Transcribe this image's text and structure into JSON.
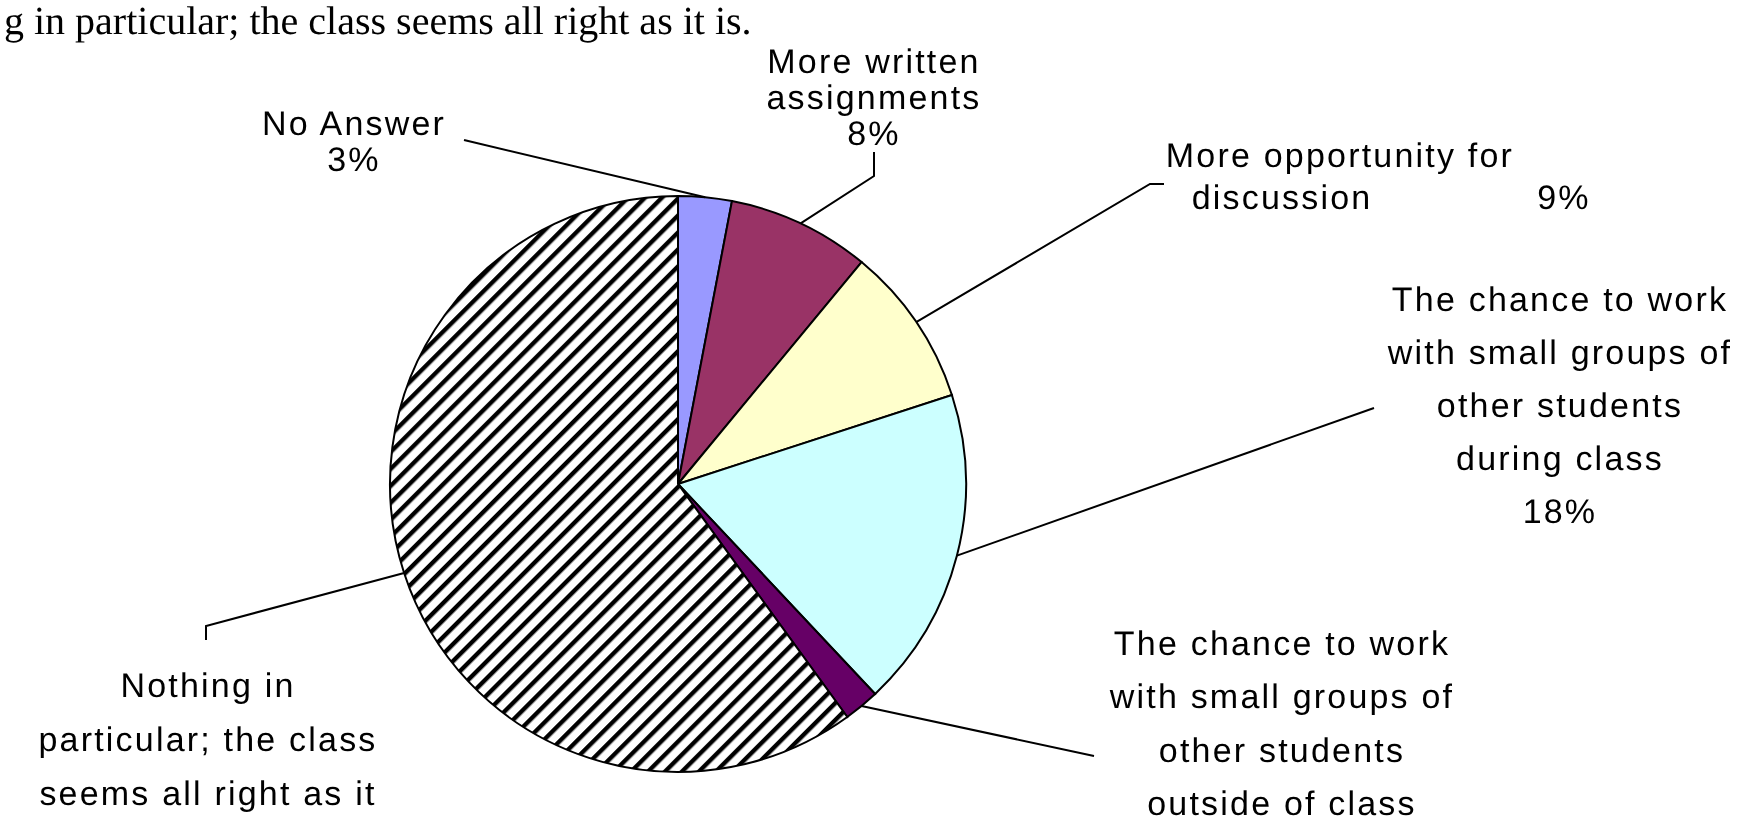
{
  "chart_data": {
    "type": "pie",
    "annotations": [
      "g in particular; the class seems all right as it is."
    ],
    "categories": [
      "No Answer",
      "More written assignments",
      "More opportunity for discussion",
      "The chance to work with small groups of other students during class",
      "The chance to work with small groups of other students outside of class",
      "Nothing in particular; the class seems all right as it"
    ],
    "values": [
      3,
      8,
      9,
      18,
      2,
      60
    ],
    "value_labels": [
      "3%",
      "8%",
      "9%",
      "18%",
      null,
      null
    ],
    "colors": [
      "#9999ff",
      "#993366",
      "#ffffcc",
      "#ccffff",
      "#660066",
      "#000000"
    ]
  }
}
